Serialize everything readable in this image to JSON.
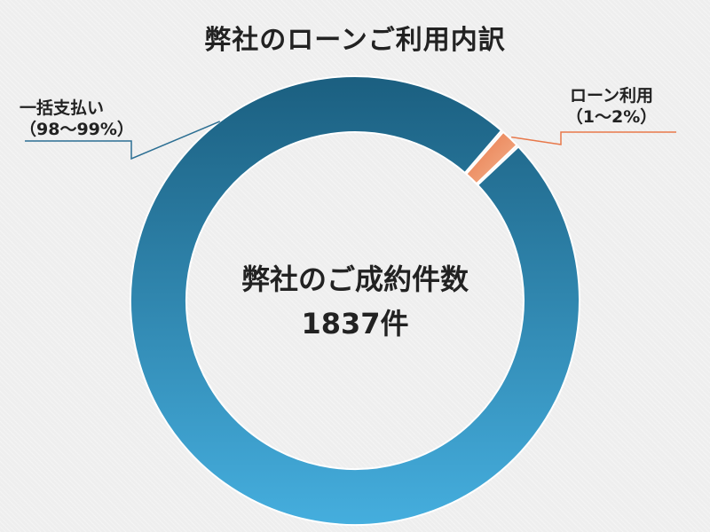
{
  "title": "弊社のローンご利用内訳",
  "center": {
    "label": "弊社のご成約件数",
    "value": "1837件"
  },
  "callouts": {
    "lump_sum": {
      "label": "一括支払い",
      "range": "（98〜99%）"
    },
    "loan": {
      "label": "ローン利用",
      "range": "（1〜2%）"
    }
  },
  "colors": {
    "lump_sum_top": "#1b5f80",
    "lump_sum_bottom": "#45aede",
    "loan": "#e8784a",
    "loan_light": "#f4b48f",
    "lump_sum_leader": "#2c6f93",
    "loan_leader": "#e8784a",
    "background": "#eeeeee"
  },
  "chart_data": {
    "type": "pie",
    "style": "donut",
    "title": "弊社のローンご利用内訳",
    "categories": [
      "一括支払い",
      "ローン利用"
    ],
    "values": [
      98.5,
      1.5
    ],
    "legend": "none"
  }
}
